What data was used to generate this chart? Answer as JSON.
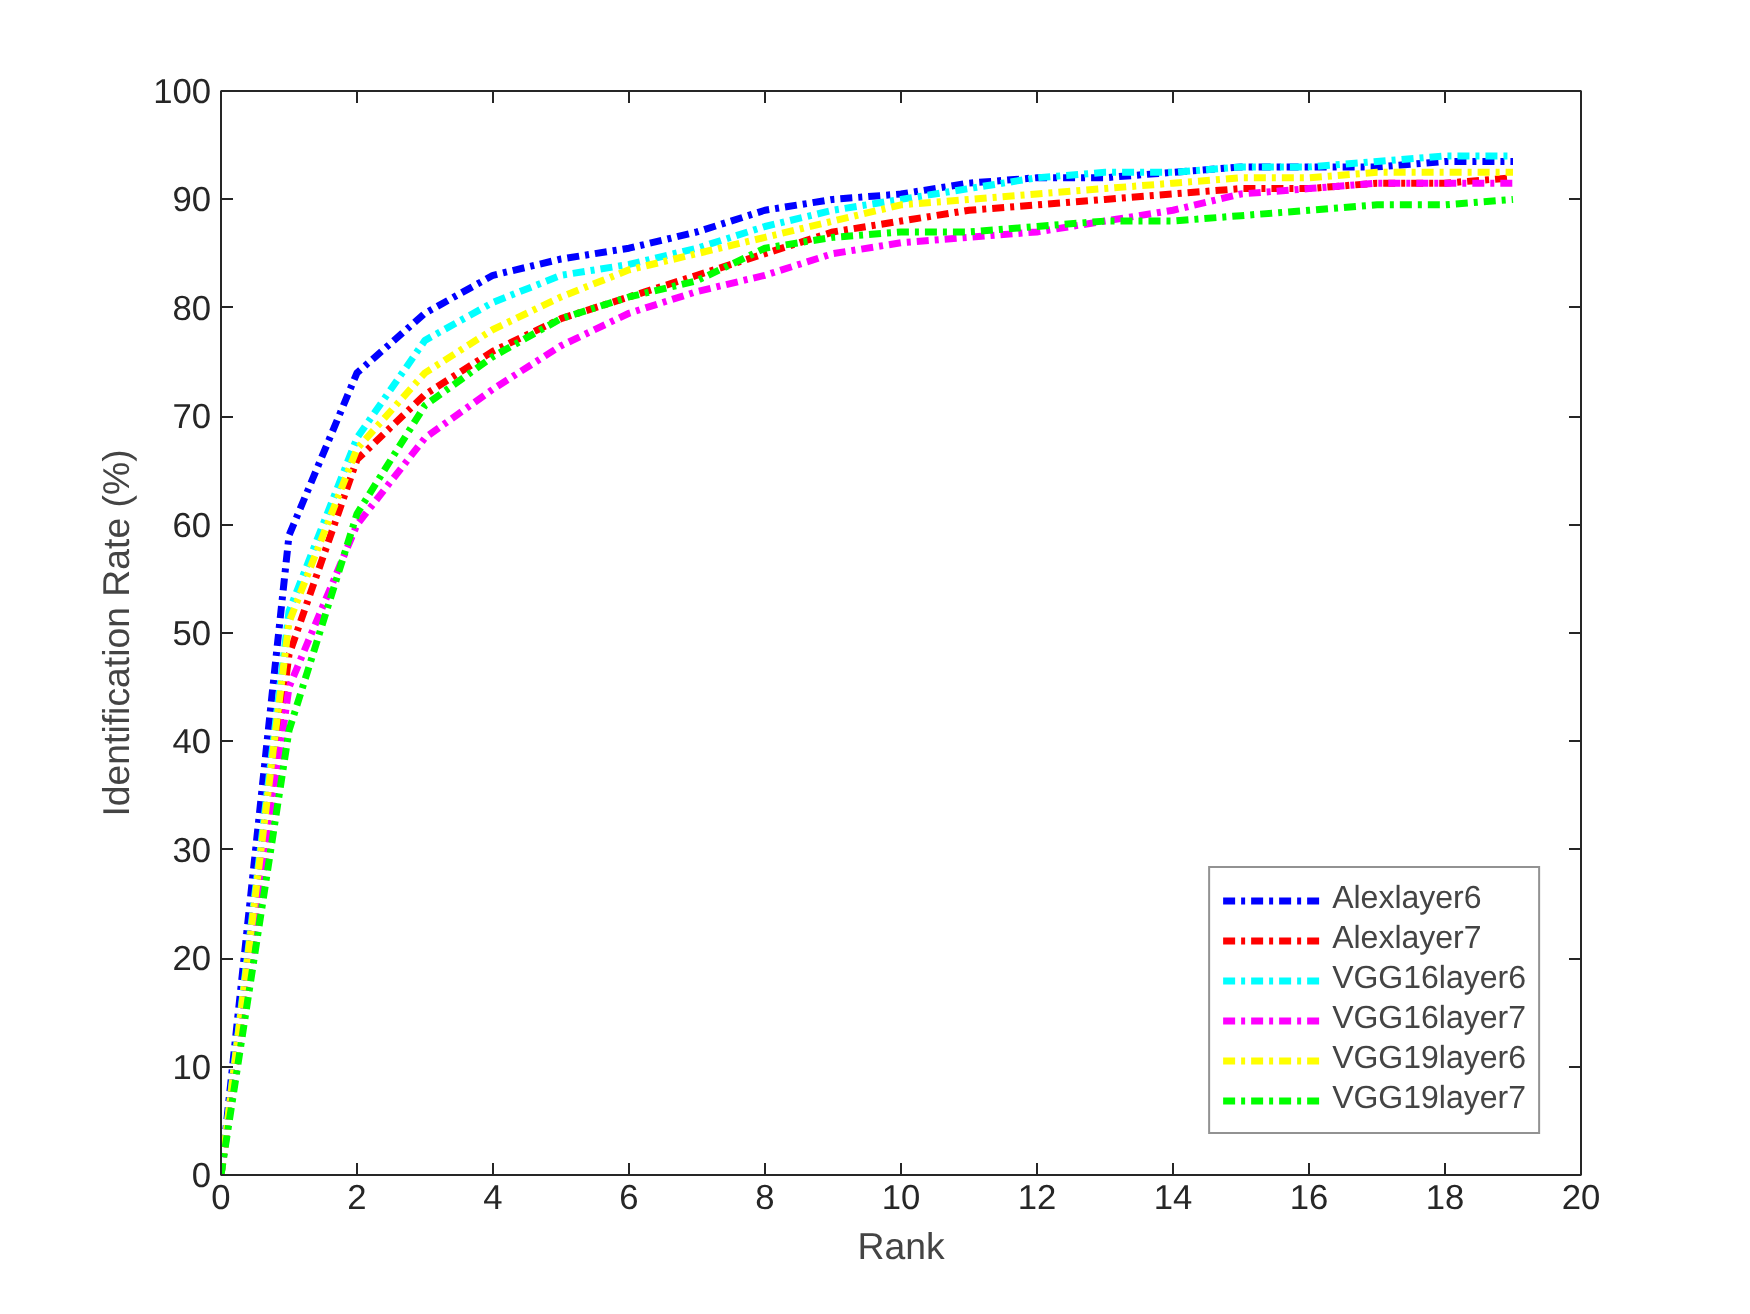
{
  "chart_data": {
    "type": "line",
    "xlabel": "Rank",
    "ylabel": "Identification Rate (%)",
    "x": [
      0,
      1,
      2,
      3,
      4,
      5,
      6,
      7,
      8,
      9,
      10,
      11,
      12,
      13,
      14,
      15,
      16,
      17,
      18,
      19
    ],
    "series": [
      {
        "name": "Alexlayer6",
        "color": "#0000ff",
        "values": [
          0,
          59,
          74,
          79.5,
          83,
          84.5,
          85.5,
          87,
          89,
          90,
          90.5,
          91.5,
          92,
          92,
          92.5,
          93,
          93,
          93,
          93.5,
          93.5
        ]
      },
      {
        "name": "Alexlayer7",
        "color": "#ff0000",
        "values": [
          0,
          48,
          66,
          72,
          76,
          79,
          81,
          83,
          85,
          87,
          88,
          89,
          89.5,
          90,
          90.5,
          91,
          91,
          91.5,
          91.5,
          92
        ]
      },
      {
        "name": "VGG16layer6",
        "color": "#00ffff",
        "values": [
          0,
          52,
          68,
          77,
          80.5,
          83,
          84,
          85.5,
          87.5,
          89,
          90,
          91,
          92,
          92.5,
          92.5,
          93,
          93,
          93.5,
          94,
          94
        ]
      },
      {
        "name": "VGG16layer7",
        "color": "#ff00ff",
        "values": [
          0,
          45,
          60,
          68,
          72.5,
          76.5,
          79.5,
          81.5,
          83,
          85,
          86,
          86.5,
          87,
          88,
          89,
          90.5,
          91,
          91.5,
          91.5,
          91.5
        ]
      },
      {
        "name": "VGG19layer6",
        "color": "#ffff00",
        "values": [
          0,
          51,
          67,
          74,
          78,
          81,
          83.5,
          85,
          86.5,
          88,
          89.5,
          90,
          90.5,
          91,
          91.5,
          92,
          92,
          92.5,
          92.5,
          92.5
        ]
      },
      {
        "name": "VGG19layer7",
        "color": "#00ff00",
        "values": [
          0,
          41,
          61,
          71,
          75.5,
          79,
          81,
          82.5,
          85.5,
          86.5,
          87,
          87,
          87.5,
          88,
          88,
          88.5,
          89,
          89.5,
          89.5,
          90
        ]
      }
    ],
    "xlim": [
      0,
      20
    ],
    "xticks": [
      0,
      2,
      4,
      6,
      8,
      10,
      12,
      14,
      16,
      18,
      20
    ],
    "ylim": [
      0,
      100
    ],
    "yticks": [
      0,
      10,
      20,
      30,
      40,
      50,
      60,
      70,
      80,
      90,
      100
    ],
    "legend": "bottom right",
    "line_style": "dashed",
    "grid": false
  }
}
